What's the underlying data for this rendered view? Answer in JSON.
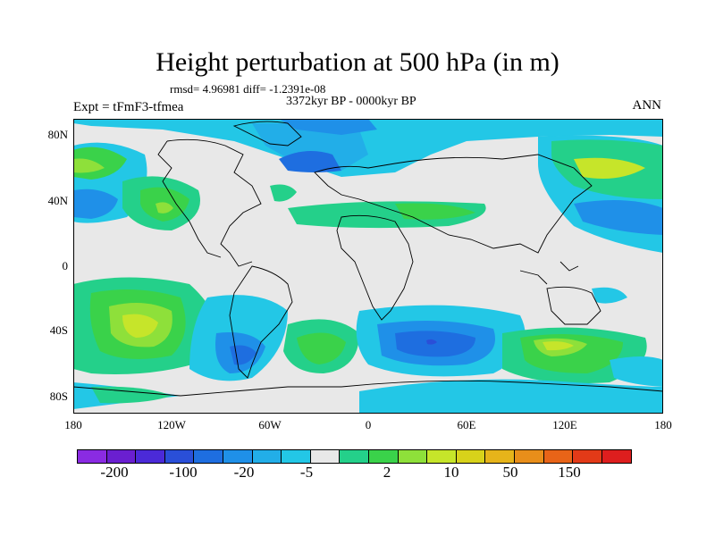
{
  "title": "Height perturbation at 500 hPa (in m)",
  "stats": "rmsd= 4.96981 diff= -1.2391e-08",
  "experiment": "Expt = tFmF3-tfmea",
  "period": "3372kyr BP - 0000kyr BP",
  "season": "ANN",
  "lat_ticks": [
    "80N",
    "40N",
    "0",
    "40S",
    "80S"
  ],
  "lon_ticks": [
    "180",
    "120W",
    "60W",
    "0",
    "60E",
    "120E",
    "180"
  ],
  "colorbar": {
    "colors": [
      "#8a2be2",
      "#6a1fd0",
      "#4b2ad8",
      "#2a4fd8",
      "#1e6ee0",
      "#1f90e8",
      "#22aee8",
      "#23c7e6",
      "#e8e8e8",
      "#24d08a",
      "#3ad24a",
      "#8ee03a",
      "#c6e52a",
      "#d8d21a",
      "#e6b41a",
      "#e88e1a",
      "#e86418",
      "#e23a18",
      "#de1e1e"
    ],
    "labels": [
      "-200",
      "-100",
      "-20",
      "-5",
      "2",
      "10",
      "50",
      "150"
    ]
  }
}
